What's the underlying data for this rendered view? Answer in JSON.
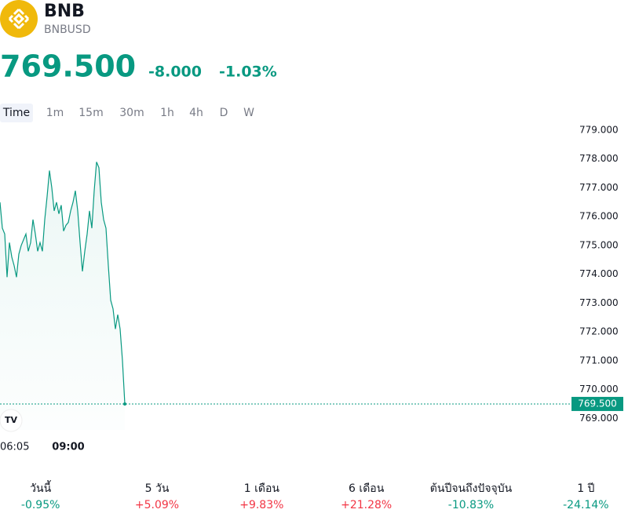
{
  "header": {
    "name": "BNB",
    "symbol": "BNBUSD",
    "price": "769.500",
    "change": "-8.000",
    "change_pct": "-1.03%"
  },
  "tabs": [
    "Time",
    "1m",
    "15m",
    "30m",
    "1h",
    "4h",
    "D",
    "W"
  ],
  "chart_data": {
    "type": "line",
    "color": "#089981",
    "categories": [
      null,
      null,
      null,
      null,
      null,
      null,
      "06:05",
      null,
      null,
      null,
      null,
      null,
      null,
      null,
      null,
      null,
      null,
      null,
      null,
      null,
      null,
      null,
      null,
      null,
      null,
      null,
      null,
      null,
      null,
      "09:00",
      null,
      null,
      null,
      null,
      null,
      null,
      null,
      null,
      null,
      null,
      null,
      null,
      null,
      null,
      null,
      null,
      null,
      null,
      null,
      null,
      null,
      null,
      null,
      null
    ],
    "values": [
      776.5,
      775.6,
      775.4,
      773.9,
      775.1,
      774.6,
      774.3,
      773.9,
      774.7,
      775.0,
      775.2,
      775.4,
      774.8,
      775.1,
      775.9,
      775.4,
      774.8,
      775.1,
      774.8,
      775.9,
      776.7,
      777.6,
      777.0,
      776.2,
      776.5,
      776.1,
      776.4,
      775.5,
      775.7,
      775.8,
      776.2,
      776.5,
      776.9,
      776.2,
      775.1,
      774.1,
      774.8,
      775.4,
      776.2,
      775.6,
      776.9,
      777.9,
      777.7,
      776.5,
      775.9,
      775.6,
      774.3,
      773.1,
      772.8,
      772.1,
      772.6,
      772.1,
      771.0,
      769.5
    ],
    "ylim": [
      768.6,
      779.3
    ],
    "yticks": [
      {
        "value": 769,
        "label": "769.000"
      },
      {
        "value": 770,
        "label": "770.000"
      },
      {
        "value": 771,
        "label": "771.000"
      },
      {
        "value": 772,
        "label": "772.000"
      },
      {
        "value": 773,
        "label": "773.000"
      },
      {
        "value": 774,
        "label": "774.000"
      },
      {
        "value": 775,
        "label": "775.000"
      },
      {
        "value": 776,
        "label": "776.000"
      },
      {
        "value": 777,
        "label": "777.000"
      },
      {
        "value": 778,
        "label": "778.000"
      },
      {
        "value": 779,
        "label": "779.000"
      }
    ]
  },
  "stats": [
    {
      "label": "วันนี้",
      "value": "-0.95%",
      "color": "#089981"
    },
    {
      "label": "5 วัน",
      "value": "+5.09%",
      "color": "#f23645"
    },
    {
      "label": "1 เดือน",
      "value": "+9.83%",
      "color": "#f23645"
    },
    {
      "label": "6 เดือน",
      "value": "+21.28%",
      "color": "#f23645"
    },
    {
      "label": "ต้นปีจนถึงปัจจุบัน",
      "value": "-10.83%",
      "color": "#089981"
    },
    {
      "label": "1 ปี",
      "value": "-24.14%",
      "color": "#089981"
    }
  ]
}
